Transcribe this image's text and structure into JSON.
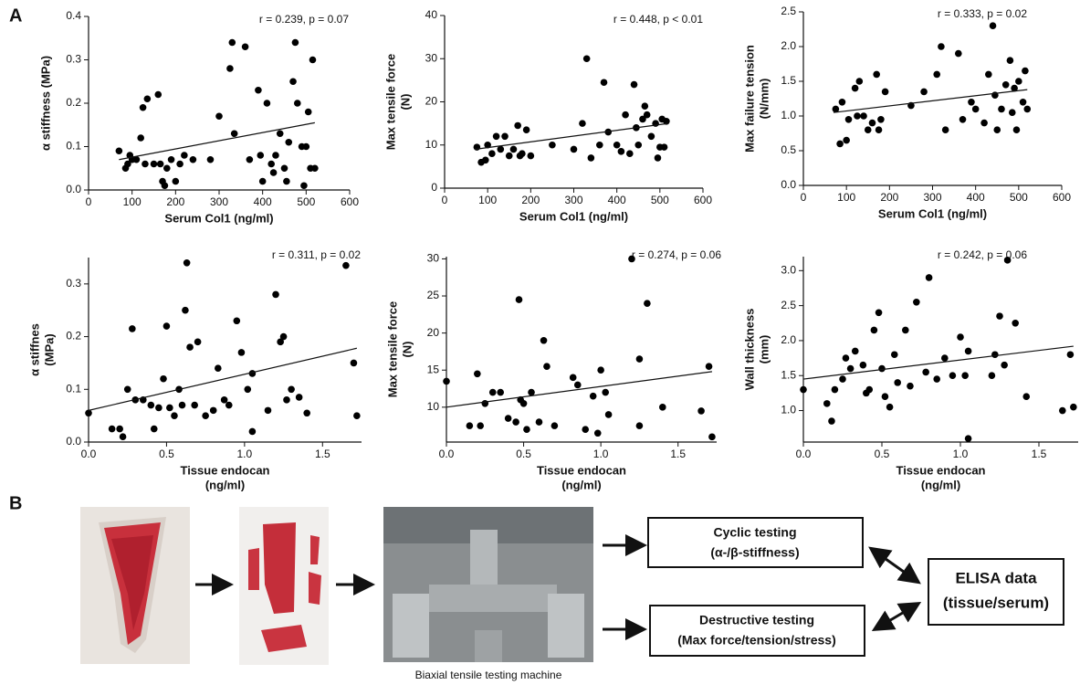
{
  "panel_labels": [
    "A",
    "B"
  ],
  "chart_data": [
    {
      "type": "scatter",
      "y_label": [
        "α stiffness (MPa)"
      ],
      "x_label": [
        "Serum Col1 (ng/ml)"
      ],
      "annotation": "r = 0.239, p = 0.07",
      "xlim": [
        0,
        600
      ],
      "xticks": [
        0,
        100,
        200,
        300,
        400,
        500,
        600
      ],
      "ylim": [
        0,
        0.4
      ],
      "yticks": [
        {
          "value": 0,
          "label": "0.0"
        },
        0.1,
        0.2,
        0.3,
        0.4
      ],
      "color": "#000000",
      "x": [
        70,
        85,
        90,
        95,
        100,
        110,
        120,
        125,
        130,
        135,
        150,
        160,
        165,
        170,
        175,
        180,
        190,
        200,
        210,
        220,
        240,
        280,
        300,
        325,
        330,
        335,
        360,
        370,
        390,
        395,
        400,
        410,
        420,
        425,
        430,
        440,
        450,
        455,
        460,
        470,
        475,
        480,
        490,
        495,
        500,
        505,
        510,
        515,
        520
      ],
      "y": [
        0.09,
        0.05,
        0.06,
        0.08,
        0.07,
        0.07,
        0.12,
        0.19,
        0.06,
        0.21,
        0.06,
        0.22,
        0.06,
        0.02,
        0.01,
        0.05,
        0.07,
        0.02,
        0.06,
        0.08,
        0.07,
        0.07,
        0.17,
        0.28,
        0.34,
        0.13,
        0.33,
        0.07,
        0.23,
        0.08,
        0.02,
        0.2,
        0.06,
        0.04,
        0.08,
        0.13,
        0.05,
        0.02,
        0.11,
        0.25,
        0.34,
        0.2,
        0.1,
        0.01,
        0.1,
        0.18,
        0.05,
        0.3,
        0.05
      ],
      "trend": {
        "x": [
          70,
          520
        ],
        "y": [
          0.07,
          0.155
        ]
      }
    },
    {
      "type": "scatter",
      "y_label": [
        "Max tensile force",
        "(N)"
      ],
      "x_label": [
        "Serum Col1 (ng/ml)"
      ],
      "annotation": "r = 0.448, p < 0.01",
      "xlim": [
        0,
        600
      ],
      "xticks": [
        0,
        100,
        200,
        300,
        400,
        500,
        600
      ],
      "ylim": [
        0,
        40
      ],
      "yticks": [
        0,
        10,
        20,
        30,
        40
      ],
      "color": "#000000",
      "x": [
        75,
        85,
        95,
        100,
        110,
        120,
        130,
        140,
        150,
        160,
        170,
        175,
        180,
        190,
        200,
        250,
        300,
        320,
        330,
        340,
        360,
        370,
        380,
        400,
        410,
        420,
        430,
        440,
        445,
        450,
        460,
        465,
        470,
        480,
        490,
        495,
        500,
        505,
        510,
        515
      ],
      "y": [
        9.5,
        6,
        6.5,
        10,
        8,
        12,
        9,
        12,
        7.5,
        9,
        14.5,
        7.5,
        8,
        13.5,
        7.5,
        10,
        9,
        15,
        30,
        7,
        10,
        24.5,
        13,
        10,
        8.5,
        17,
        8,
        24,
        14,
        10,
        16,
        19,
        17,
        12,
        15,
        7,
        9.5,
        16,
        9.5,
        15.5
      ],
      "trend": {
        "x": [
          70,
          520
        ],
        "y": [
          9,
          15
        ]
      }
    },
    {
      "type": "scatter",
      "y_label": [
        "Max failure tension",
        "(N/mm)"
      ],
      "x_label": [
        "Serum Col1 (ng/ml)"
      ],
      "annotation": "r = 0.333, p = 0.02",
      "xlim": [
        0,
        600
      ],
      "xticks": [
        0,
        100,
        200,
        300,
        400,
        500,
        600
      ],
      "ylim": [
        0,
        2.5
      ],
      "yticks": [
        {
          "value": 0,
          "label": "0.0"
        },
        0.5,
        {
          "value": 1,
          "label": "1.0"
        },
        1.5,
        {
          "value": 2,
          "label": "2.0"
        },
        2.5
      ],
      "color": "#000000",
      "x": [
        75,
        85,
        90,
        100,
        105,
        120,
        125,
        130,
        140,
        150,
        160,
        170,
        175,
        180,
        190,
        250,
        280,
        310,
        320,
        330,
        360,
        370,
        390,
        400,
        420,
        430,
        440,
        445,
        450,
        460,
        470,
        480,
        485,
        490,
        495,
        500,
        510,
        515,
        520
      ],
      "y": [
        1.1,
        0.6,
        1.2,
        0.65,
        0.95,
        1.4,
        1,
        1.5,
        1,
        0.8,
        0.9,
        1.6,
        0.8,
        0.95,
        1.35,
        1.15,
        1.35,
        1.6,
        2,
        0.8,
        1.9,
        0.95,
        1.2,
        1.1,
        0.9,
        1.6,
        2.3,
        1.3,
        0.8,
        1.1,
        1.45,
        1.8,
        1.05,
        1.4,
        0.8,
        1.5,
        1.2,
        1.65,
        1.1
      ],
      "trend": {
        "x": [
          70,
          520
        ],
        "y": [
          1.05,
          1.38
        ]
      }
    },
    {
      "type": "scatter",
      "y_label": [
        "α stiffnes",
        "(MPa)"
      ],
      "x_label": [
        "Tissue endocan",
        "(ng/ml)"
      ],
      "annotation": "r = 0.311, p = 0.02",
      "xlim": [
        0,
        1.75
      ],
      "xticks": [
        {
          "value": 0,
          "label": "0.0"
        },
        0.5,
        {
          "value": 1,
          "label": "1.0"
        },
        1.5
      ],
      "ylim": [
        0,
        0.35
      ],
      "yticks": [
        {
          "value": 0,
          "label": "0.0"
        },
        0.1,
        0.2,
        0.3
      ],
      "color": "#000000",
      "x": [
        0,
        0.15,
        0.2,
        0.22,
        0.25,
        0.28,
        0.3,
        0.35,
        0.4,
        0.42,
        0.45,
        0.48,
        0.5,
        0.52,
        0.55,
        0.58,
        0.6,
        0.62,
        0.63,
        0.65,
        0.68,
        0.7,
        0.75,
        0.8,
        0.83,
        0.87,
        0.9,
        0.95,
        0.98,
        1.02,
        1.05,
        1.05,
        1.15,
        1.2,
        1.23,
        1.25,
        1.27,
        1.3,
        1.35,
        1.4,
        1.65,
        1.7,
        1.72
      ],
      "y": [
        0.055,
        0.025,
        0.025,
        0.01,
        0.1,
        0.215,
        0.08,
        0.08,
        0.07,
        0.025,
        0.065,
        0.12,
        0.22,
        0.065,
        0.05,
        0.1,
        0.07,
        0.25,
        0.34,
        0.18,
        0.07,
        0.19,
        0.05,
        0.06,
        0.14,
        0.08,
        0.07,
        0.23,
        0.17,
        0.1,
        0.02,
        0.13,
        0.06,
        0.28,
        0.19,
        0.2,
        0.08,
        0.1,
        0.085,
        0.055,
        0.335,
        0.15,
        0.05
      ],
      "trend": {
        "x": [
          0,
          1.72
        ],
        "y": [
          0.06,
          0.178
        ]
      }
    },
    {
      "type": "scatter",
      "y_label": [
        "Max tensile force",
        "(N)"
      ],
      "x_label": [
        "Tissue endocan",
        "(ng/ml)"
      ],
      "annotation": "r = 0.274, p = 0.06",
      "xlim": [
        0,
        1.75
      ],
      "xticks": [
        {
          "value": 0,
          "label": "0.0"
        },
        0.5,
        {
          "value": 1,
          "label": "1.0"
        },
        1.5
      ],
      "ylim": [
        5.3,
        30.3
      ],
      "yticks": [
        10,
        15,
        20,
        25,
        30
      ],
      "color": "#000000",
      "x": [
        0,
        0.15,
        0.2,
        0.22,
        0.25,
        0.3,
        0.35,
        0.4,
        0.45,
        0.47,
        0.48,
        0.5,
        0.52,
        0.55,
        0.6,
        0.63,
        0.65,
        0.7,
        0.82,
        0.85,
        0.9,
        0.95,
        0.98,
        1,
        1.03,
        1.05,
        1.2,
        1.25,
        1.25,
        1.3,
        1.4,
        1.65,
        1.7,
        1.72
      ],
      "y": [
        13.5,
        7.5,
        14.5,
        7.5,
        10.5,
        12,
        12,
        8.5,
        8,
        24.5,
        11,
        10.5,
        7,
        12,
        8,
        19,
        15.5,
        7.5,
        14,
        13,
        7,
        11.5,
        6.5,
        15,
        12,
        9,
        30,
        16.5,
        7.5,
        24,
        10,
        9.5,
        15.5,
        6
      ],
      "trend": {
        "x": [
          0,
          1.72
        ],
        "y": [
          10,
          14.8
        ]
      }
    },
    {
      "type": "scatter",
      "y_label": [
        "Wall thickness",
        "(mm)"
      ],
      "x_label": [
        "Tissue endocan",
        "(ng/ml)"
      ],
      "annotation": "r = 0.242, p = 0.06",
      "xlim": [
        0,
        1.75
      ],
      "xticks": [
        {
          "value": 0,
          "label": "0.0"
        },
        0.5,
        {
          "value": 1,
          "label": "1.0"
        },
        1.5
      ],
      "ylim": [
        0.55,
        3.2
      ],
      "yticks": [
        {
          "value": 1,
          "label": "1.0"
        },
        1.5,
        {
          "value": 2,
          "label": "2.0"
        },
        2.5,
        {
          "value": 3,
          "label": "3.0"
        }
      ],
      "color": "#000000",
      "x": [
        0,
        0.15,
        0.18,
        0.2,
        0.25,
        0.27,
        0.3,
        0.33,
        0.38,
        0.4,
        0.42,
        0.45,
        0.48,
        0.5,
        0.52,
        0.55,
        0.58,
        0.6,
        0.65,
        0.68,
        0.72,
        0.78,
        0.8,
        0.85,
        0.9,
        0.95,
        1,
        1.03,
        1.05,
        1.05,
        1.2,
        1.22,
        1.25,
        1.28,
        1.3,
        1.35,
        1.42,
        1.65,
        1.7,
        1.72
      ],
      "y": [
        1.3,
        1.1,
        0.85,
        1.3,
        1.45,
        1.75,
        1.6,
        1.85,
        1.65,
        1.25,
        1.3,
        2.15,
        2.4,
        1.6,
        1.2,
        1.05,
        1.8,
        1.4,
        2.15,
        1.35,
        2.55,
        1.55,
        2.9,
        1.45,
        1.75,
        1.5,
        2.05,
        1.5,
        0.6,
        1.85,
        1.5,
        1.8,
        2.35,
        1.65,
        3.15,
        2.25,
        1.2,
        1,
        1.8,
        1.05
      ],
      "trend": {
        "x": [
          0,
          1.72
        ],
        "y": [
          1.45,
          1.92
        ]
      }
    }
  ],
  "diagram": {
    "caption": "Biaxial tensile testing machine",
    "boxes": [
      {
        "lines": [
          "Cyclic testing",
          "(α-/β-stiffness)"
        ]
      },
      {
        "lines": [
          "Destructive testing",
          "(Max force/tension/stress)"
        ]
      },
      {
        "lines": [
          "ELISA data",
          "(tissue/serum)"
        ]
      }
    ]
  }
}
